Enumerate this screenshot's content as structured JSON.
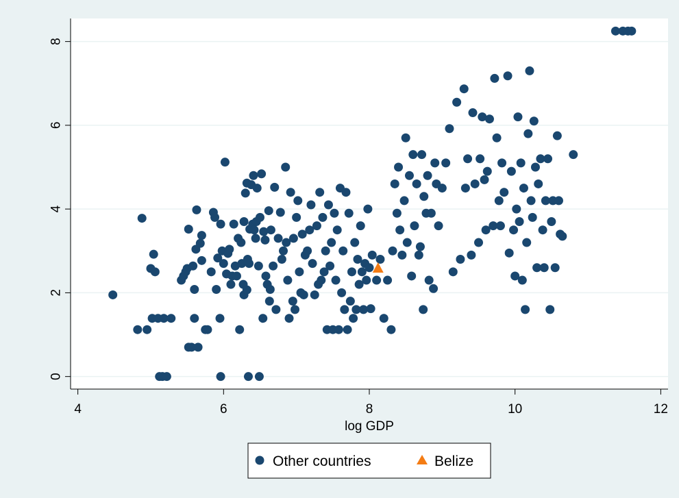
{
  "colors": {
    "outer_background": "#eaf2f3",
    "plot_background": "#ffffff",
    "gridline": "#eaf2f3",
    "axis": "#000000",
    "other_countries": "#1a476f",
    "belize": "#f47c14"
  },
  "chart_data": {
    "type": "scatter",
    "title": "",
    "xlabel": "log GDP",
    "ylabel": "",
    "xlim": [
      3.9,
      12.1
    ],
    "ylim": [
      -0.3,
      8.55
    ],
    "xticks": [
      4,
      6,
      8,
      10,
      12
    ],
    "yticks": [
      0,
      2,
      4,
      6,
      8
    ],
    "grid": "horizontal",
    "legend": {
      "position": "bottom",
      "entries": [
        "Other countries",
        "Belize"
      ]
    },
    "series": [
      {
        "name": "Other countries",
        "marker": "circle",
        "points": [
          [
            4.48,
            1.95
          ],
          [
            4.82,
            1.12
          ],
          [
            4.88,
            3.78
          ],
          [
            4.95,
            1.12
          ],
          [
            5.0,
            2.58
          ],
          [
            5.02,
            1.39
          ],
          [
            5.04,
            2.92
          ],
          [
            5.06,
            2.5
          ],
          [
            5.1,
            1.39
          ],
          [
            5.12,
            0.0
          ],
          [
            5.16,
            0.0
          ],
          [
            5.18,
            1.39
          ],
          [
            5.22,
            0.0
          ],
          [
            5.28,
            1.39
          ],
          [
            5.42,
            2.3
          ],
          [
            5.45,
            2.4
          ],
          [
            5.48,
            2.5
          ],
          [
            5.5,
            2.58
          ],
          [
            5.52,
            3.52
          ],
          [
            5.52,
            0.7
          ],
          [
            5.56,
            0.7
          ],
          [
            5.58,
            2.64
          ],
          [
            5.6,
            2.08
          ],
          [
            5.6,
            1.39
          ],
          [
            5.62,
            3.04
          ],
          [
            5.63,
            3.98
          ],
          [
            5.65,
            0.7
          ],
          [
            5.68,
            3.18
          ],
          [
            5.7,
            3.37
          ],
          [
            5.7,
            2.77
          ],
          [
            5.75,
            1.12
          ],
          [
            5.78,
            1.12
          ],
          [
            5.83,
            2.5
          ],
          [
            5.86,
            3.92
          ],
          [
            5.88,
            3.8
          ],
          [
            5.9,
            2.08
          ],
          [
            5.92,
            2.83
          ],
          [
            5.95,
            1.39
          ],
          [
            5.96,
            3.64
          ],
          [
            5.96,
            0.0
          ],
          [
            5.98,
            3.0
          ],
          [
            6.0,
            2.7
          ],
          [
            6.02,
            5.12
          ],
          [
            6.04,
            2.45
          ],
          [
            6.06,
            2.94
          ],
          [
            6.08,
            3.04
          ],
          [
            6.1,
            2.2
          ],
          [
            6.12,
            2.4
          ],
          [
            6.14,
            3.64
          ],
          [
            6.16,
            2.64
          ],
          [
            6.18,
            2.4
          ],
          [
            6.2,
            3.3
          ],
          [
            6.22,
            1.12
          ],
          [
            6.24,
            3.2
          ],
          [
            6.25,
            2.7
          ],
          [
            6.27,
            2.2
          ],
          [
            6.28,
            3.7
          ],
          [
            6.28,
            1.95
          ],
          [
            6.3,
            4.38
          ],
          [
            6.32,
            4.62
          ],
          [
            6.32,
            2.07
          ],
          [
            6.33,
            2.8
          ],
          [
            6.34,
            0.0
          ],
          [
            6.35,
            2.7
          ],
          [
            6.36,
            3.52
          ],
          [
            6.38,
            4.58
          ],
          [
            6.4,
            3.64
          ],
          [
            6.41,
            4.8
          ],
          [
            6.42,
            3.5
          ],
          [
            6.44,
            3.3
          ],
          [
            6.45,
            3.7
          ],
          [
            6.46,
            4.5
          ],
          [
            6.48,
            2.64
          ],
          [
            6.49,
            0.0
          ],
          [
            6.5,
            3.8
          ],
          [
            6.52,
            4.84
          ],
          [
            6.54,
            1.39
          ],
          [
            6.55,
            3.46
          ],
          [
            6.57,
            3.26
          ],
          [
            6.58,
            2.4
          ],
          [
            6.6,
            2.2
          ],
          [
            6.62,
            3.96
          ],
          [
            6.63,
            1.8
          ],
          [
            6.64,
            2.08
          ],
          [
            6.65,
            3.5
          ],
          [
            6.68,
            2.64
          ],
          [
            6.7,
            4.52
          ],
          [
            6.72,
            1.6
          ],
          [
            6.75,
            3.3
          ],
          [
            6.78,
            3.92
          ],
          [
            6.8,
            2.8
          ],
          [
            6.82,
            3.0
          ],
          [
            6.85,
            5.0
          ],
          [
            6.86,
            3.2
          ],
          [
            6.88,
            2.3
          ],
          [
            6.9,
            1.39
          ],
          [
            6.92,
            4.4
          ],
          [
            6.95,
            1.8
          ],
          [
            6.96,
            3.3
          ],
          [
            6.98,
            1.6
          ],
          [
            7.0,
            3.8
          ],
          [
            7.02,
            4.2
          ],
          [
            7.04,
            2.5
          ],
          [
            7.06,
            2.0
          ],
          [
            7.08,
            3.4
          ],
          [
            7.1,
            1.95
          ],
          [
            7.12,
            2.9
          ],
          [
            7.15,
            3.0
          ],
          [
            7.18,
            3.5
          ],
          [
            7.2,
            4.1
          ],
          [
            7.22,
            2.7
          ],
          [
            7.25,
            1.95
          ],
          [
            7.28,
            3.6
          ],
          [
            7.3,
            2.2
          ],
          [
            7.32,
            4.4
          ],
          [
            7.34,
            2.3
          ],
          [
            7.36,
            3.8
          ],
          [
            7.38,
            2.5
          ],
          [
            7.4,
            3.0
          ],
          [
            7.42,
            1.12
          ],
          [
            7.44,
            4.1
          ],
          [
            7.46,
            2.64
          ],
          [
            7.48,
            3.2
          ],
          [
            7.5,
            1.12
          ],
          [
            7.52,
            3.9
          ],
          [
            7.54,
            2.3
          ],
          [
            7.56,
            3.5
          ],
          [
            7.58,
            1.12
          ],
          [
            7.6,
            4.5
          ],
          [
            7.62,
            2.0
          ],
          [
            7.64,
            3.0
          ],
          [
            7.66,
            1.6
          ],
          [
            7.68,
            4.4
          ],
          [
            7.7,
            1.12
          ],
          [
            7.72,
            3.9
          ],
          [
            7.74,
            1.8
          ],
          [
            7.76,
            2.5
          ],
          [
            7.78,
            1.39
          ],
          [
            7.8,
            3.2
          ],
          [
            7.82,
            1.6
          ],
          [
            7.84,
            2.8
          ],
          [
            7.86,
            2.2
          ],
          [
            7.88,
            3.6
          ],
          [
            7.9,
            2.5
          ],
          [
            7.92,
            1.6
          ],
          [
            7.94,
            2.7
          ],
          [
            7.96,
            2.3
          ],
          [
            7.98,
            4.0
          ],
          [
            8.0,
            2.6
          ],
          [
            8.02,
            1.62
          ],
          [
            8.04,
            2.9
          ],
          [
            8.1,
            2.3
          ],
          [
            8.15,
            2.8
          ],
          [
            8.2,
            1.39
          ],
          [
            8.25,
            2.3
          ],
          [
            8.3,
            1.12
          ],
          [
            8.32,
            3.0
          ],
          [
            8.35,
            4.6
          ],
          [
            8.38,
            3.9
          ],
          [
            8.4,
            5.0
          ],
          [
            8.42,
            3.5
          ],
          [
            8.45,
            2.9
          ],
          [
            8.48,
            4.2
          ],
          [
            8.5,
            5.7
          ],
          [
            8.52,
            3.2
          ],
          [
            8.55,
            4.8
          ],
          [
            8.58,
            2.4
          ],
          [
            8.6,
            5.3
          ],
          [
            8.62,
            3.6
          ],
          [
            8.65,
            4.6
          ],
          [
            8.68,
            2.9
          ],
          [
            8.7,
            3.1
          ],
          [
            8.72,
            5.3
          ],
          [
            8.74,
            1.6
          ],
          [
            8.75,
            4.3
          ],
          [
            8.78,
            3.9
          ],
          [
            8.8,
            4.8
          ],
          [
            8.82,
            2.3
          ],
          [
            8.85,
            3.9
          ],
          [
            8.88,
            2.1
          ],
          [
            8.9,
            5.1
          ],
          [
            8.92,
            4.6
          ],
          [
            8.95,
            3.6
          ],
          [
            9.0,
            4.5
          ],
          [
            9.05,
            5.1
          ],
          [
            9.1,
            5.92
          ],
          [
            9.15,
            2.5
          ],
          [
            9.2,
            6.55
          ],
          [
            9.25,
            2.8
          ],
          [
            9.3,
            6.87
          ],
          [
            9.32,
            4.5
          ],
          [
            9.35,
            5.2
          ],
          [
            9.4,
            2.9
          ],
          [
            9.42,
            6.3
          ],
          [
            9.45,
            4.6
          ],
          [
            9.5,
            3.2
          ],
          [
            9.52,
            5.2
          ],
          [
            9.55,
            6.2
          ],
          [
            9.58,
            4.7
          ],
          [
            9.6,
            3.5
          ],
          [
            9.62,
            4.9
          ],
          [
            9.65,
            6.15
          ],
          [
            9.7,
            3.6
          ],
          [
            9.72,
            7.12
          ],
          [
            9.75,
            5.7
          ],
          [
            9.78,
            4.2
          ],
          [
            9.8,
            3.6
          ],
          [
            9.82,
            5.1
          ],
          [
            9.85,
            4.4
          ],
          [
            9.9,
            7.18
          ],
          [
            9.92,
            2.95
          ],
          [
            9.95,
            4.9
          ],
          [
            9.98,
            3.5
          ],
          [
            10.0,
            2.4
          ],
          [
            10.02,
            4.0
          ],
          [
            10.04,
            6.2
          ],
          [
            10.06,
            3.7
          ],
          [
            10.08,
            5.1
          ],
          [
            10.1,
            2.3
          ],
          [
            10.12,
            4.5
          ],
          [
            10.14,
            1.6
          ],
          [
            10.16,
            3.2
          ],
          [
            10.18,
            5.8
          ],
          [
            10.2,
            7.3
          ],
          [
            10.22,
            4.2
          ],
          [
            10.24,
            3.8
          ],
          [
            10.26,
            6.1
          ],
          [
            10.28,
            5.0
          ],
          [
            10.3,
            2.6
          ],
          [
            10.32,
            4.6
          ],
          [
            10.35,
            5.2
          ],
          [
            10.38,
            3.5
          ],
          [
            10.4,
            2.6
          ],
          [
            10.42,
            4.2
          ],
          [
            10.45,
            5.2
          ],
          [
            10.48,
            1.6
          ],
          [
            10.5,
            3.7
          ],
          [
            10.52,
            4.2
          ],
          [
            10.55,
            2.6
          ],
          [
            10.58,
            5.75
          ],
          [
            10.6,
            4.2
          ],
          [
            10.62,
            3.4
          ],
          [
            10.65,
            3.35
          ],
          [
            10.8,
            5.3
          ],
          [
            11.38,
            8.25
          ],
          [
            11.48,
            8.25
          ],
          [
            11.55,
            8.25
          ],
          [
            11.6,
            8.25
          ]
        ]
      },
      {
        "name": "Belize",
        "marker": "triangle",
        "points": [
          [
            8.12,
            2.58
          ]
        ]
      }
    ]
  }
}
